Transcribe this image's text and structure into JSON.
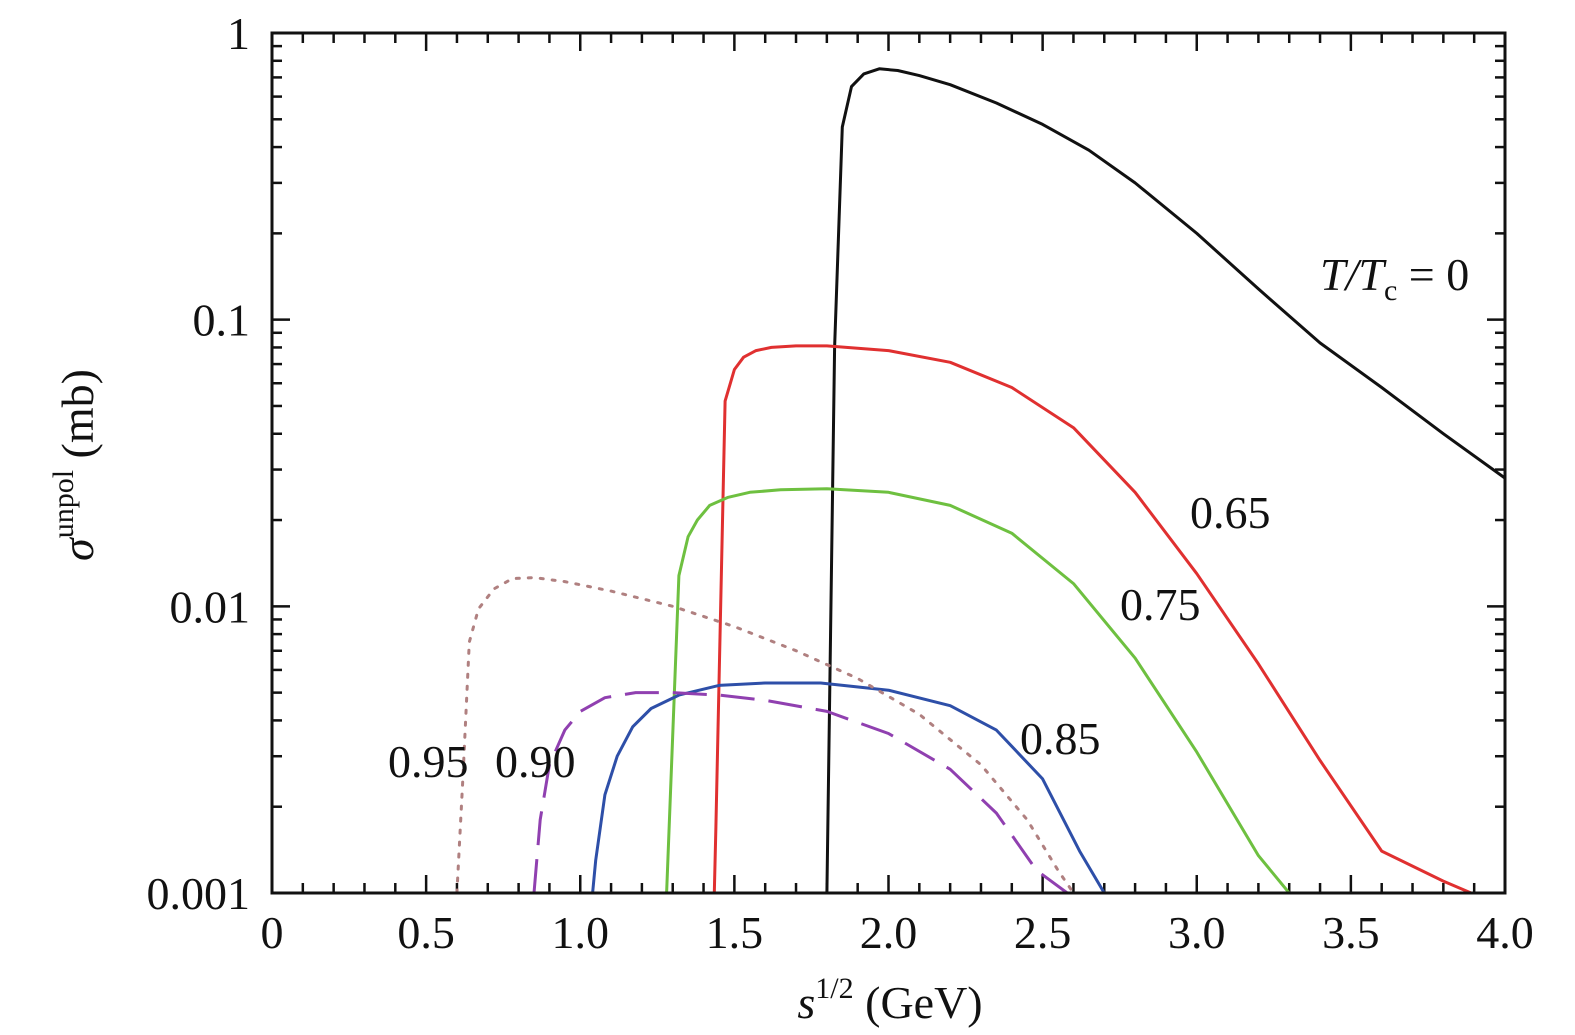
{
  "chart_data": {
    "type": "line",
    "title": "",
    "xlabel": "s^{1/2} (GeV)",
    "ylabel": "σ^{unpol} (mb)",
    "xlim": [
      0,
      4.0
    ],
    "ylim": [
      0.001,
      1
    ],
    "yscale": "log",
    "x_ticks": [
      0,
      0.5,
      1.0,
      1.5,
      2.0,
      2.5,
      3.0,
      3.5,
      4.0
    ],
    "x_tick_labels": [
      "0",
      "0.5",
      "1.0",
      "1.5",
      "2.0",
      "2.5",
      "3.0",
      "3.5",
      "4.0"
    ],
    "y_ticks": [
      0.001,
      0.01,
      0.1,
      1
    ],
    "y_tick_labels": [
      "0.001",
      "0.01",
      "0.1",
      "1"
    ],
    "series": [
      {
        "name": "T/Tc = 0",
        "label": "T/T",
        "label_sub": "c",
        "label_tail": " = 0",
        "color": "#111111",
        "dash": "solid",
        "x": [
          1.8,
          1.825,
          1.85,
          1.88,
          1.92,
          1.97,
          2.03,
          2.1,
          2.2,
          2.35,
          2.5,
          2.65,
          2.8,
          3.0,
          3.2,
          3.4,
          3.6,
          3.8,
          4.0
        ],
        "y": [
          0.001,
          0.08,
          0.47,
          0.65,
          0.72,
          0.75,
          0.74,
          0.71,
          0.66,
          0.57,
          0.48,
          0.39,
          0.3,
          0.2,
          0.128,
          0.083,
          0.058,
          0.04,
          0.028
        ]
      },
      {
        "name": "0.65",
        "label": "0.65",
        "color": "#e03030",
        "dash": "solid",
        "x": [
          1.435,
          1.44,
          1.47,
          1.5,
          1.53,
          1.57,
          1.62,
          1.7,
          1.8,
          2.0,
          2.2,
          2.4,
          2.6,
          2.8,
          3.0,
          3.2,
          3.4,
          3.6,
          3.8,
          3.89
        ],
        "y": [
          0.001,
          0.0017,
          0.052,
          0.067,
          0.074,
          0.078,
          0.08,
          0.081,
          0.081,
          0.078,
          0.071,
          0.058,
          0.042,
          0.025,
          0.013,
          0.0063,
          0.0029,
          0.0014,
          0.0011,
          0.001
        ]
      },
      {
        "name": "0.75",
        "label": "0.75",
        "color": "#6ec040",
        "dash": "solid",
        "x": [
          1.28,
          1.32,
          1.35,
          1.38,
          1.42,
          1.48,
          1.55,
          1.65,
          1.8,
          2.0,
          2.2,
          2.4,
          2.6,
          2.8,
          3.0,
          3.2,
          3.3
        ],
        "y": [
          0.001,
          0.0128,
          0.0175,
          0.02,
          0.0225,
          0.024,
          0.025,
          0.0255,
          0.0257,
          0.025,
          0.0225,
          0.018,
          0.012,
          0.0066,
          0.0031,
          0.00135,
          0.001
        ]
      },
      {
        "name": "0.85",
        "label": "0.85",
        "color": "#2e4fa8",
        "dash": "solid",
        "x": [
          1.04,
          1.05,
          1.08,
          1.12,
          1.17,
          1.23,
          1.32,
          1.45,
          1.6,
          1.78,
          2.0,
          2.2,
          2.35,
          2.5,
          2.62,
          2.7
        ],
        "y": [
          0.001,
          0.0013,
          0.0022,
          0.003,
          0.0038,
          0.0044,
          0.0049,
          0.0053,
          0.0054,
          0.0054,
          0.0051,
          0.0045,
          0.0037,
          0.0025,
          0.0014,
          0.001
        ]
      },
      {
        "name": "0.90",
        "label": "0.90",
        "color": "#9040b0",
        "dash": "long",
        "x": [
          0.85,
          0.87,
          0.9,
          0.95,
          1.0,
          1.08,
          1.18,
          1.3,
          1.45,
          1.6,
          1.8,
          2.0,
          2.2,
          2.35,
          2.48,
          2.58
        ],
        "y": [
          0.001,
          0.0018,
          0.0028,
          0.0037,
          0.0043,
          0.0048,
          0.005,
          0.005,
          0.0049,
          0.0047,
          0.0043,
          0.0036,
          0.0027,
          0.0019,
          0.0012,
          0.001
        ]
      },
      {
        "name": "0.95",
        "label": "0.95",
        "color": "#b08080",
        "dash": "dot",
        "x": [
          0.6,
          0.62,
          0.64,
          0.67,
          0.72,
          0.78,
          0.85,
          0.95,
          1.1,
          1.3,
          1.5,
          1.7,
          1.9,
          2.1,
          2.3,
          2.45,
          2.55,
          2.6
        ],
        "y": [
          0.001,
          0.0026,
          0.0075,
          0.0098,
          0.0115,
          0.0125,
          0.0126,
          0.0122,
          0.0113,
          0.01,
          0.0085,
          0.007,
          0.0056,
          0.0042,
          0.0028,
          0.0018,
          0.0012,
          0.001
        ]
      }
    ]
  }
}
